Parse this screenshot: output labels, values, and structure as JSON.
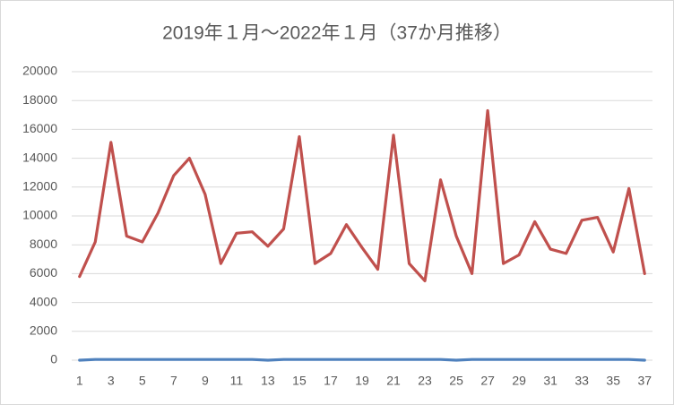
{
  "chart_data": {
    "type": "line",
    "title": "2019年１月～2022年１月（37か月推移）",
    "categories": [
      1,
      null,
      3,
      null,
      5,
      null,
      7,
      null,
      9,
      null,
      11,
      null,
      13,
      null,
      15,
      null,
      17,
      null,
      19,
      null,
      21,
      null,
      23,
      null,
      25,
      null,
      27,
      null,
      29,
      null,
      31,
      null,
      33,
      null,
      35,
      null,
      37
    ],
    "series": [
      {
        "color": "#c0504d",
        "values": [
          5800,
          8200,
          15100,
          8600,
          8200,
          10200,
          12800,
          14000,
          11500,
          6700,
          8800,
          8900,
          7900,
          9100,
          15500,
          6700,
          7400,
          9400,
          7800,
          6300,
          15600,
          6700,
          5500,
          12500,
          8600,
          6000,
          17300,
          6700,
          7300,
          9600,
          7700,
          7400,
          9700,
          9900,
          7500,
          11900,
          6000
        ]
      },
      {
        "color": "#4f81bd",
        "values": [
          0,
          50,
          50,
          50,
          50,
          50,
          50,
          50,
          50,
          50,
          50,
          50,
          0,
          50,
          50,
          50,
          50,
          50,
          50,
          50,
          50,
          50,
          50,
          50,
          0,
          50,
          50,
          50,
          50,
          50,
          50,
          50,
          50,
          50,
          50,
          50,
          0
        ]
      }
    ],
    "ylim": [
      0,
      20000
    ],
    "yticks": [
      0,
      2000,
      4000,
      6000,
      8000,
      10000,
      12000,
      14000,
      16000,
      18000,
      20000
    ],
    "grid": true
  }
}
